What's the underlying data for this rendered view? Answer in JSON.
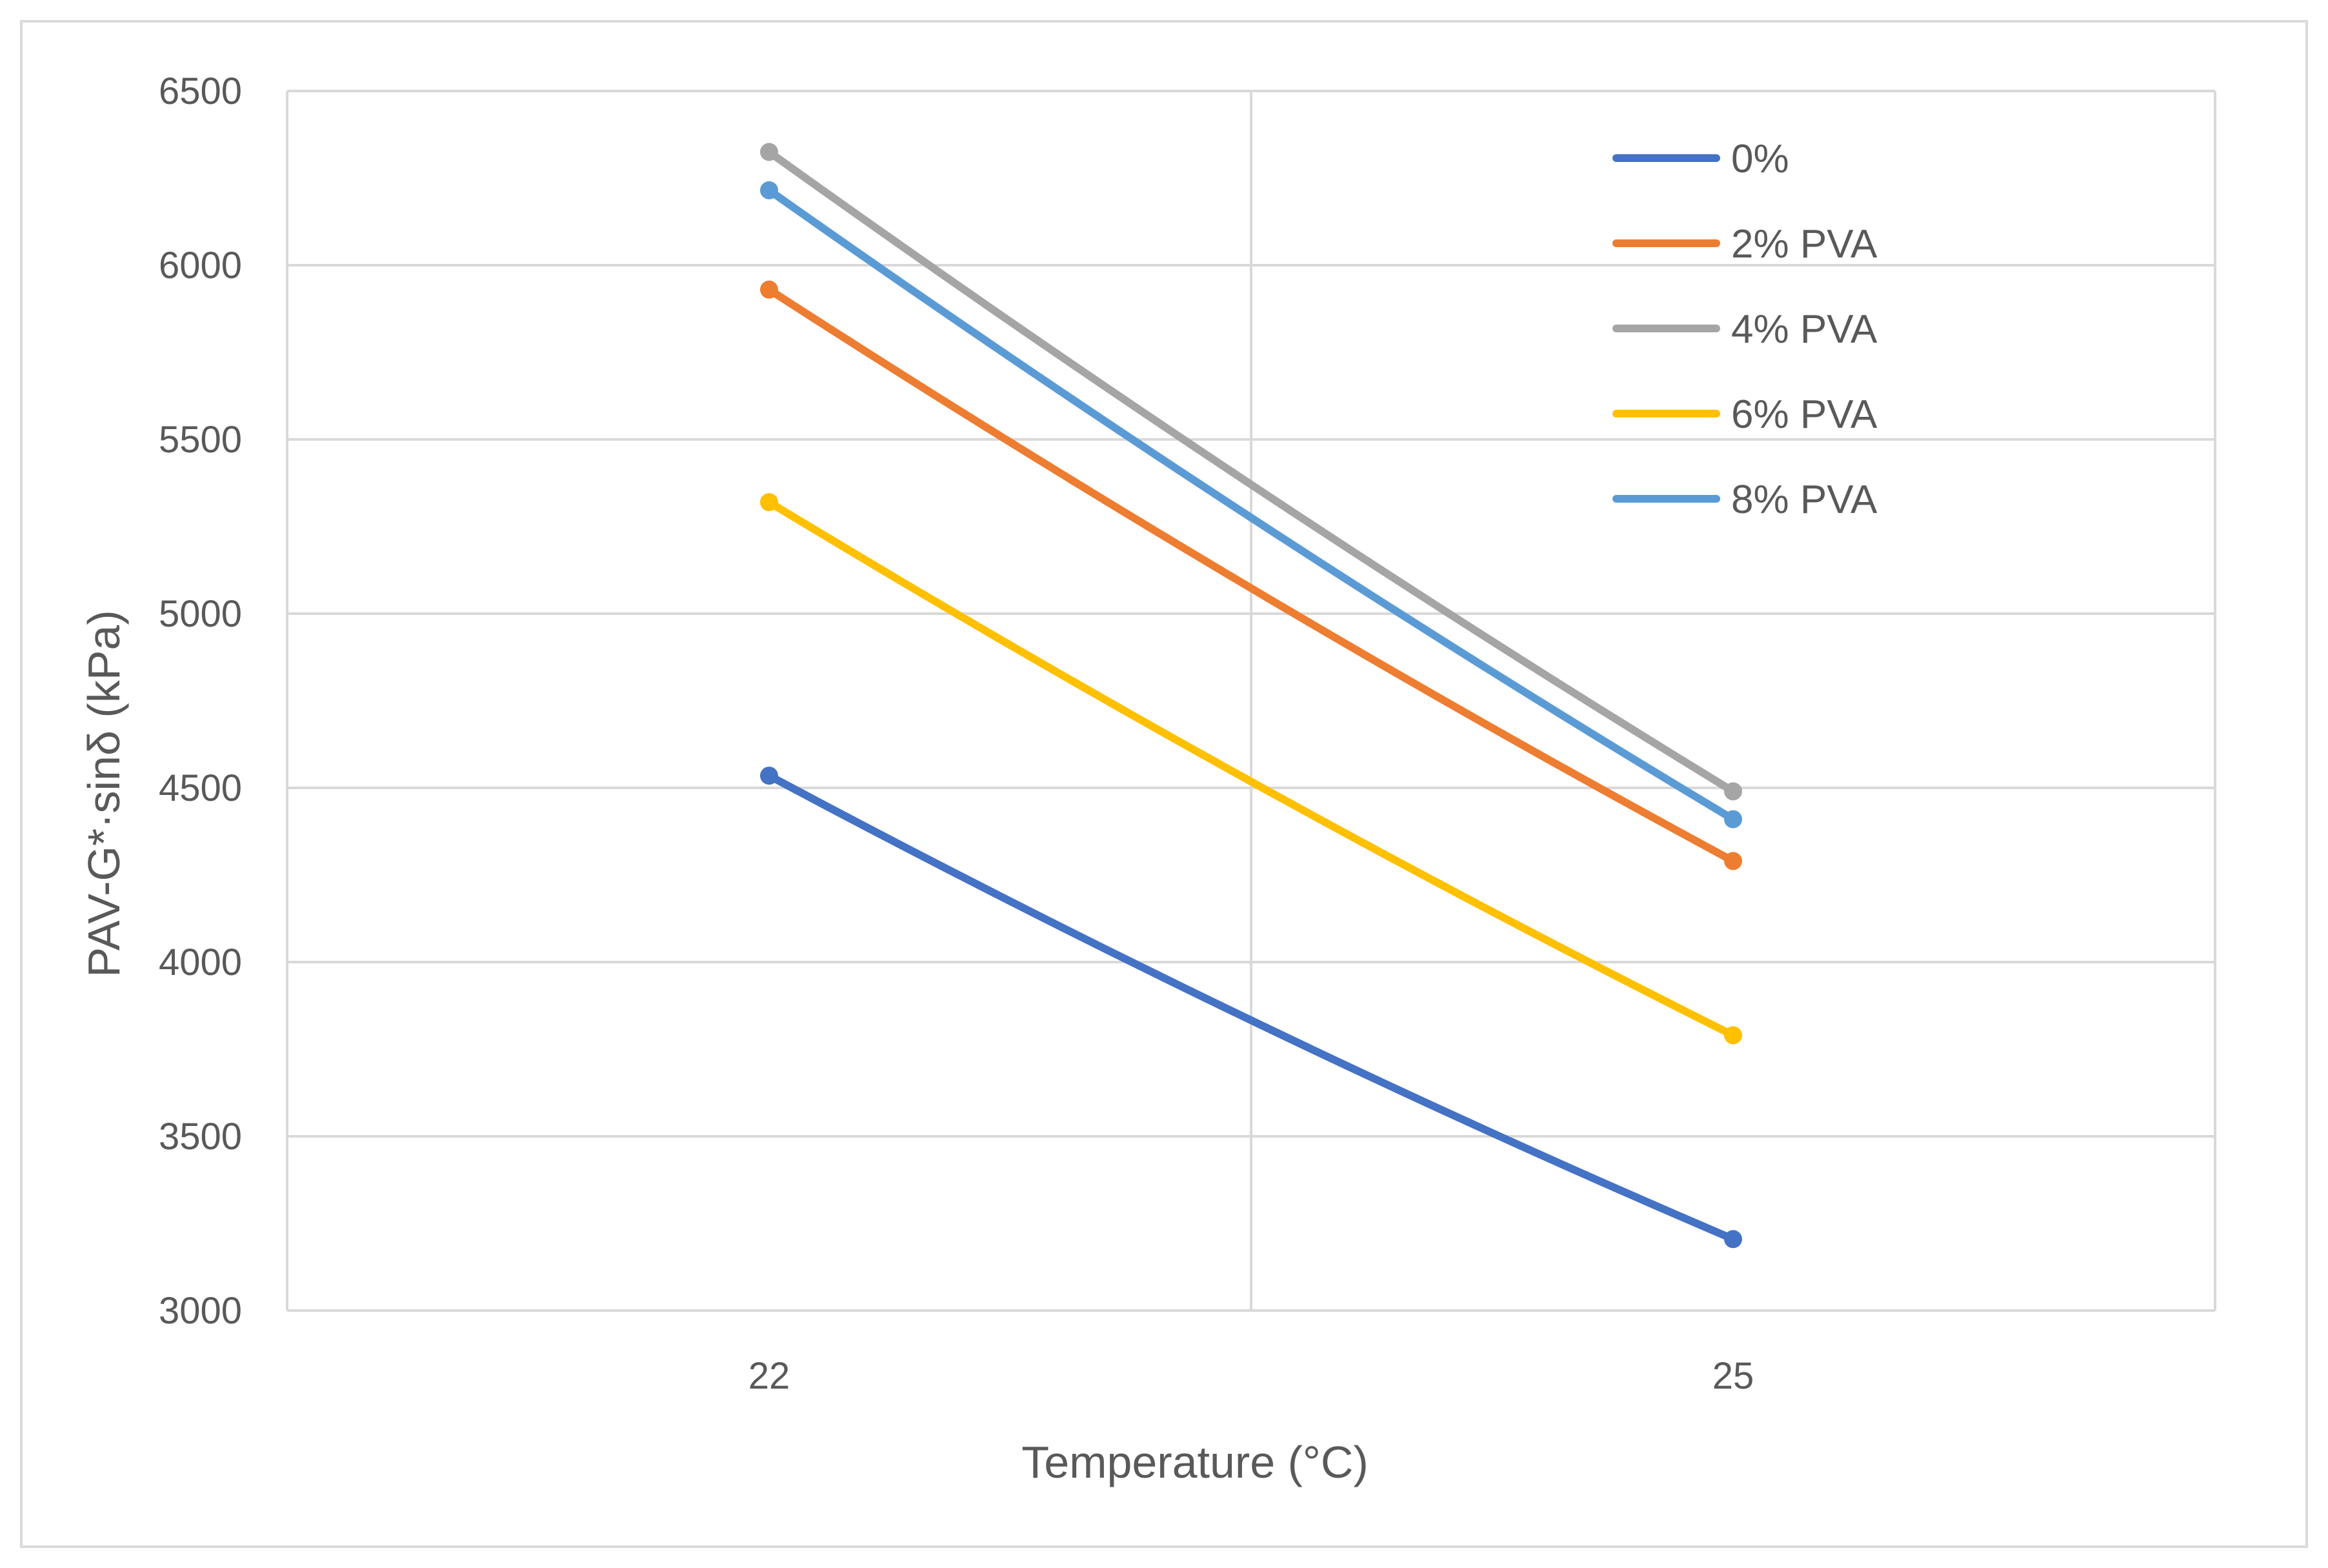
{
  "chart_data": {
    "type": "line",
    "title": "",
    "xlabel": "Temperature (°C)",
    "ylabel": "PAV-G*·sinδ (kPa)",
    "categories": [
      "22",
      "25"
    ],
    "ylim": [
      3000,
      6500
    ],
    "yticks": [
      3000,
      3500,
      4000,
      4500,
      5000,
      5500,
      6000,
      6500
    ],
    "grid": true,
    "legend_position": "top-right",
    "series": [
      {
        "name": "0%",
        "color": "#4472C4",
        "values": [
          4535,
          3205
        ]
      },
      {
        "name": "2% PVA",
        "color": "#ED7D31",
        "values": [
          5930,
          4290
        ]
      },
      {
        "name": "4% PVA",
        "color": "#A5A5A5",
        "values": [
          6325,
          4490
        ]
      },
      {
        "name": "6% PVA",
        "color": "#FFC000",
        "values": [
          5320,
          3790
        ]
      },
      {
        "name": "8% PVA",
        "color": "#5B9BD5",
        "values": [
          6215,
          4410
        ]
      }
    ]
  }
}
